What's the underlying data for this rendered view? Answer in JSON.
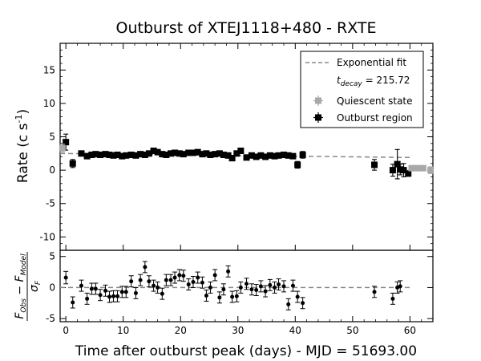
{
  "chart_data": [
    {
      "type": "scatter",
      "title": "Outburst of XTEJ1118+480 - RXTE",
      "ylabel": "Rate (c s",
      "ylabel_exponent": "-1",
      "ylabel_close": ")",
      "xlim": [
        -1,
        64
      ],
      "ylim": [
        -12,
        19
      ],
      "yticks": [
        -10,
        -5,
        0,
        5,
        10,
        15
      ],
      "legend_position": "top-right",
      "legend": {
        "fit": "Exponential fit",
        "decay_base": "t",
        "decay_sub": "decay",
        "decay_value": " = 215.72",
        "quiescent": "Quiescent state",
        "outburst": "Outburst region"
      },
      "fit": {
        "x": [
          -1,
          60
        ],
        "y": [
          2.5,
          1.9
        ]
      },
      "series": [
        {
          "name": "Outburst region",
          "x": [
            0,
            1.2,
            2.7,
            3.7,
            4.5,
            5.2,
            6,
            6.9,
            7.6,
            8.3,
            9,
            9.8,
            10.5,
            11.4,
            12.2,
            13,
            13.8,
            14.5,
            15.3,
            16,
            16.8,
            17.5,
            18.3,
            19,
            19.8,
            20.5,
            21.4,
            22.2,
            23,
            23.8,
            24.5,
            25.2,
            26,
            26.8,
            27.5,
            28.3,
            29,
            29.8,
            30.5,
            31.5,
            32.4,
            33.2,
            34,
            34.8,
            35.6,
            36.4,
            37.1,
            38,
            38.8,
            39.6,
            40.4,
            41.3,
            53.8,
            57,
            57.8,
            58.3,
            58.9,
            59.7
          ],
          "y": [
            4.2,
            1.0,
            2.5,
            2.1,
            2.3,
            2.4,
            2.3,
            2.4,
            2.3,
            2.2,
            2.3,
            2.1,
            2.2,
            2.3,
            2.2,
            2.4,
            2.3,
            2.5,
            2.9,
            2.7,
            2.4,
            2.3,
            2.5,
            2.6,
            2.5,
            2.4,
            2.6,
            2.6,
            2.7,
            2.4,
            2.5,
            2.3,
            2.4,
            2.5,
            2.3,
            2.2,
            1.8,
            2.5,
            2.9,
            1.9,
            2.2,
            2.0,
            2.2,
            2.0,
            2.2,
            2.1,
            2.2,
            2.3,
            2.2,
            2.1,
            0.8,
            2.3,
            0.8,
            0.0,
            0.9,
            0.1,
            0.0,
            -0.5
          ],
          "yerr": [
            1.2,
            0.6,
            0.3,
            0.3,
            0.3,
            0.3,
            0.3,
            0.3,
            0.3,
            0.3,
            0.3,
            0.3,
            0.3,
            0.3,
            0.3,
            0.3,
            0.3,
            0.3,
            0.3,
            0.3,
            0.3,
            0.3,
            0.3,
            0.3,
            0.3,
            0.3,
            0.3,
            0.3,
            0.3,
            0.3,
            0.3,
            0.3,
            0.3,
            0.3,
            0.3,
            0.3,
            0.3,
            0.3,
            0.3,
            0.3,
            0.3,
            0.3,
            0.3,
            0.3,
            0.3,
            0.3,
            0.3,
            0.3,
            0.3,
            0.3,
            0.5,
            0.5,
            0.8,
            0.9,
            2.2,
            0.8,
            1.0,
            0.4
          ]
        },
        {
          "name": "Quiescent state",
          "x": [
            -0.6,
            60.3,
            61.3,
            62.3,
            63.6
          ],
          "y": [
            3.3,
            0.3,
            0.3,
            0.3,
            0.0
          ],
          "yerr": [
            0.6,
            0.2,
            0.2,
            0.2,
            0.5
          ]
        }
      ]
    },
    {
      "type": "scatter",
      "xlabel": "Time after outburst peak (days) - MJD = 51693.00",
      "ylabel_num_base": "F",
      "ylabel_num_sub1": "Obs",
      "ylabel_minus": " − ",
      "ylabel_num_sub2": "Model",
      "ylabel_den_base": "σ",
      "ylabel_den_sub": "F",
      "xlim": [
        -1,
        64
      ],
      "ylim": [
        -5.5,
        6
      ],
      "xticks": [
        0,
        10,
        20,
        30,
        40,
        50,
        60
      ],
      "yticks": [
        -5,
        0,
        5
      ],
      "x": [
        0,
        1.2,
        2.7,
        3.7,
        4.5,
        5.2,
        6,
        6.9,
        7.6,
        8.3,
        9,
        9.8,
        10.5,
        11.4,
        12.2,
        13,
        13.8,
        14.5,
        15.3,
        16,
        16.8,
        17.5,
        18.3,
        19,
        19.8,
        20.5,
        21.4,
        22.2,
        23,
        23.8,
        24.5,
        25.2,
        26,
        26.8,
        27.5,
        28.3,
        29,
        29.8,
        30.5,
        31.5,
        32.4,
        33.2,
        34,
        34.8,
        35.6,
        36.4,
        37.1,
        38,
        38.8,
        39.6,
        40.4,
        41.3,
        53.8,
        57,
        57.8,
        58.3
      ],
      "y": [
        1.6,
        -2.4,
        0.3,
        -1.8,
        -0.2,
        -0.2,
        -1.2,
        -0.5,
        -1.5,
        -1.4,
        -1.4,
        -0.7,
        -0.7,
        1.0,
        -0.9,
        1.2,
        3.3,
        1.0,
        0.3,
        0.0,
        -1.0,
        1.2,
        1.2,
        1.6,
        2.0,
        1.9,
        0.5,
        0.9,
        1.6,
        0.8,
        -1.3,
        0.0,
        2.0,
        -1.6,
        -0.3,
        2.6,
        -1.5,
        -1.4,
        0.0,
        0.6,
        -0.3,
        -0.4,
        0.2,
        -0.6,
        0.4,
        0.0,
        0.5,
        0.2,
        -2.7,
        0.3,
        -1.5,
        -2.5,
        -0.7,
        -1.8,
        0.0,
        0.2
      ],
      "yerr": [
        1.0,
        0.9,
        0.9,
        0.9,
        0.9,
        0.9,
        0.9,
        0.9,
        0.9,
        0.9,
        0.9,
        0.9,
        0.9,
        0.9,
        0.9,
        0.9,
        0.9,
        0.9,
        0.9,
        0.9,
        0.9,
        0.9,
        0.9,
        0.9,
        0.9,
        0.9,
        0.9,
        0.9,
        0.9,
        0.9,
        0.9,
        0.9,
        0.9,
        0.9,
        0.9,
        0.9,
        0.9,
        0.9,
        0.9,
        0.9,
        0.9,
        0.9,
        0.9,
        0.9,
        0.9,
        0.9,
        0.9,
        0.9,
        0.9,
        0.9,
        0.9,
        0.9,
        0.9,
        0.9,
        0.9,
        0.9
      ],
      "zero_line": 0
    }
  ]
}
